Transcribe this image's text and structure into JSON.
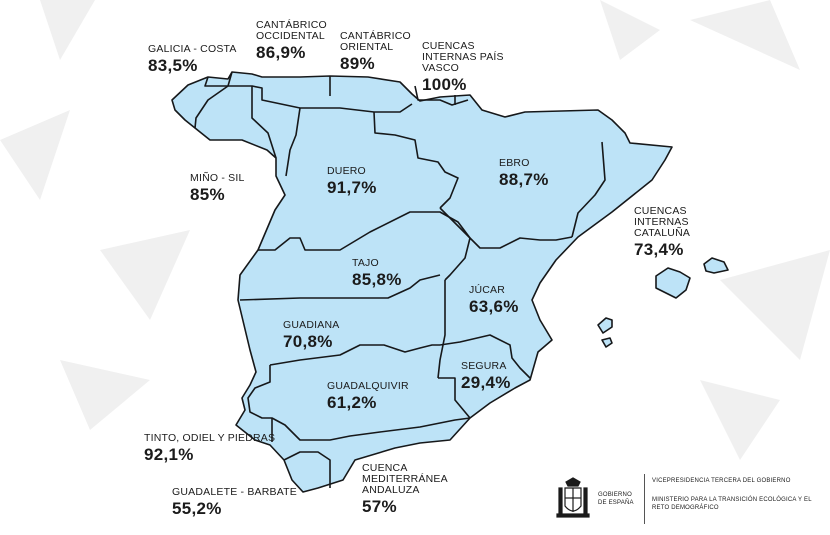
{
  "colors": {
    "land": "#bde3f7",
    "border": "#16181a",
    "text": "#1b1b1b",
    "background_decor": "#eeeeee"
  },
  "basins": {
    "galicia_costa": {
      "name": "GALICIA - COSTA",
      "value": "83,5%"
    },
    "cantabrico_occidental": {
      "name": "CANTÁBRICO OCCIDENTAL",
      "value": "86,9%"
    },
    "cantabrico_oriental": {
      "name": "CANTÁBRICO ORIENTAL",
      "value": "89%"
    },
    "cuencas_internas_pais_vasco": {
      "name": "CUENCAS INTERNAS PAÍS VASCO",
      "value": "100%"
    },
    "mino_sil": {
      "name": "MIÑO - SIL",
      "value": "85%"
    },
    "duero": {
      "name": "DUERO",
      "value": "91,7%"
    },
    "ebro": {
      "name": "EBRO",
      "value": "88,7%"
    },
    "cuencas_internas_cataluna": {
      "name": "CUENCAS INTERNAS CATALUÑA",
      "value": "73,4%"
    },
    "tajo": {
      "name": "TAJO",
      "value": "85,8%"
    },
    "jucar": {
      "name": "JÚCAR",
      "value": "63,6%"
    },
    "guadiana": {
      "name": "GUADIANA",
      "value": "70,8%"
    },
    "segura": {
      "name": "SEGURA",
      "value": "29,4%"
    },
    "guadalquivir": {
      "name": "GUADALQUIVIR",
      "value": "61,2%"
    },
    "tinto_odiel_piedras": {
      "name": "TINTO, ODIEL Y PIEDRAS",
      "value": "92,1%"
    },
    "guadalete_barbate": {
      "name": "GUADALETE - BARBATE",
      "value": "55,2%"
    },
    "cuenca_mediterranea_andaluza": {
      "name": "CUENCA MEDITERRÁNEA ANDALUZA",
      "value": "57%"
    }
  },
  "logo": {
    "government": "GOBIERNO DE ESPAÑA",
    "vicepresidency": "VICEPRESIDENCIA TERCERA DEL GOBIERNO",
    "ministry": "MINISTERIO PARA LA TRANSICIÓN ECOLÓGICA Y EL RETO DEMOGRÁFICO"
  }
}
